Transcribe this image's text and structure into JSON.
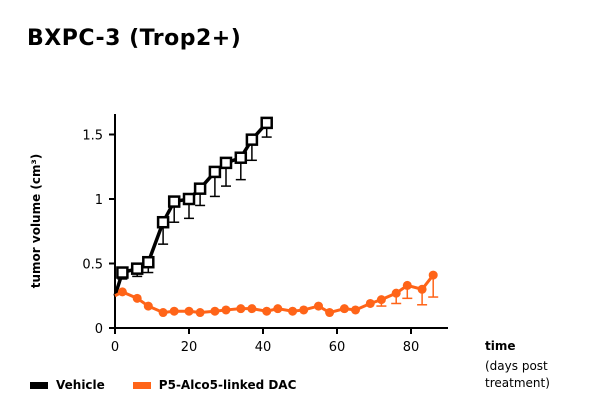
{
  "chart_data": {
    "type": "line",
    "title": "BXPC-3 (Trop2+)",
    "xlabel": "time",
    "xlabel_sub": [
      "(days post",
      "treatment)"
    ],
    "ylabel": "tumor volume (cm³)",
    "xlim": [
      0,
      90
    ],
    "ylim": [
      0,
      1.65
    ],
    "xticks": [
      "0",
      "20",
      "40",
      "60",
      "80"
    ],
    "yticks": [
      "0",
      "0.5",
      "1",
      "1.5"
    ],
    "grid": false,
    "legend": "bottom-left",
    "series": [
      {
        "name": "Vehicle",
        "color": "#000000",
        "marker": "square",
        "x": [
          0,
          2,
          6,
          9,
          13,
          16,
          20,
          23,
          27,
          30,
          34,
          37,
          41
        ],
        "y": [
          0.25,
          0.43,
          0.46,
          0.51,
          0.82,
          0.98,
          1.0,
          1.08,
          1.21,
          1.28,
          1.32,
          1.46,
          1.59
        ],
        "err_low": [
          null,
          0.38,
          0.4,
          0.43,
          0.65,
          0.82,
          0.85,
          0.95,
          1.02,
          1.1,
          1.15,
          1.3,
          1.48
        ]
      },
      {
        "name": "P5-Alco5-linked DAC",
        "color": "#ff6418",
        "marker": "circle",
        "x": [
          0,
          2,
          6,
          9,
          13,
          16,
          20,
          23,
          27,
          30,
          34,
          37,
          41,
          44,
          48,
          51,
          55,
          58,
          62,
          65,
          69,
          72,
          76,
          79,
          83,
          86
        ],
        "y": [
          0.25,
          0.28,
          0.23,
          0.17,
          0.12,
          0.13,
          0.13,
          0.12,
          0.13,
          0.14,
          0.15,
          0.15,
          0.13,
          0.15,
          0.13,
          0.14,
          0.17,
          0.12,
          0.15,
          0.14,
          0.19,
          0.22,
          0.27,
          0.33,
          0.3,
          0.41
        ],
        "err_low": [
          null,
          null,
          null,
          null,
          null,
          null,
          null,
          null,
          null,
          null,
          null,
          null,
          null,
          null,
          null,
          null,
          null,
          null,
          null,
          null,
          null,
          0.17,
          0.19,
          0.23,
          0.18,
          0.24
        ]
      }
    ]
  }
}
